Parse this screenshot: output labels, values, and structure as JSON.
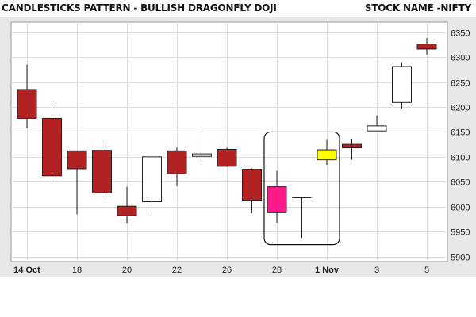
{
  "header": {
    "title": "CANDLESTICKS PATTERN - BULLISH DRAGONFLY DOJI",
    "stock": "STOCK NAME -NIFTY"
  },
  "colors": {
    "bearish": "#b22222",
    "bullish": "#ffffff",
    "highlight_pink": "#ff1a8c",
    "highlight_yellow": "#ffff00",
    "frame_bg": "#e8e8e8",
    "plot_bg": "#ffffff",
    "grid": "#dddddd"
  },
  "chart_data": {
    "type": "candlestick",
    "title": "CANDLESTICKS PATTERN - BULLISH DRAGONFLY DOJI",
    "xlabel": "",
    "ylabel": "",
    "ylim": [
      5890,
      6370
    ],
    "y_ticks": [
      5900,
      5950,
      6000,
      6050,
      6100,
      6150,
      6200,
      6250,
      6300,
      6350
    ],
    "x_ticks": [
      {
        "label": "14 Oct",
        "index": 0
      },
      {
        "label": "18",
        "index": 2
      },
      {
        "label": "20",
        "index": 4
      },
      {
        "label": "22",
        "index": 6
      },
      {
        "label": "26",
        "index": 8
      },
      {
        "label": "28",
        "index": 10
      },
      {
        "label": "1 Nov",
        "index": 12
      },
      {
        "label": "3",
        "index": 14
      },
      {
        "label": "5",
        "index": 16
      }
    ],
    "grid": true,
    "candles": [
      {
        "open": 6235,
        "high": 6285,
        "low": 6157,
        "close": 6177,
        "color": "bearish"
      },
      {
        "open": 6177,
        "high": 6203,
        "low": 6050,
        "close": 6062,
        "color": "bearish"
      },
      {
        "open": 6112,
        "high": 6112,
        "low": 5985,
        "close": 6076,
        "color": "bearish"
      },
      {
        "open": 6113,
        "high": 6128,
        "low": 6008,
        "close": 6028,
        "color": "bearish"
      },
      {
        "open": 6001,
        "high": 6040,
        "low": 5966,
        "close": 5982,
        "color": "bearish"
      },
      {
        "open": 6010,
        "high": 6100,
        "low": 5985,
        "close": 6100,
        "color": "bullish"
      },
      {
        "open": 6112,
        "high": 6118,
        "low": 6041,
        "close": 6066,
        "color": "bearish"
      },
      {
        "open": 6106,
        "high": 6152,
        "low": 6094,
        "close": 6101,
        "color": "bullish"
      },
      {
        "open": 6115,
        "high": 6118,
        "low": 6080,
        "close": 6081,
        "color": "bearish"
      },
      {
        "open": 6075,
        "high": 6077,
        "low": 5987,
        "close": 6013,
        "color": "bearish"
      },
      {
        "open": 6040,
        "high": 6072,
        "low": 5967,
        "close": 5988,
        "color": "highlight_pink"
      },
      {
        "open": 6018,
        "high": 6018,
        "low": 5937,
        "close": 6018,
        "color": "doji"
      },
      {
        "open": 6094,
        "high": 6134,
        "low": 6084,
        "close": 6114,
        "color": "highlight_yellow"
      },
      {
        "open": 6125,
        "high": 6135,
        "low": 6094,
        "close": 6118,
        "color": "bearish"
      },
      {
        "open": 6152,
        "high": 6183,
        "low": 6152,
        "close": 6162,
        "color": "bullish"
      },
      {
        "open": 6209,
        "high": 6290,
        "low": 6197,
        "close": 6281,
        "color": "bullish"
      },
      {
        "open": 6326,
        "high": 6338,
        "low": 6305,
        "close": 6316,
        "color": "bearish"
      }
    ],
    "highlight_box": {
      "from_index": 10,
      "to_index": 12,
      "y_low": 5924,
      "y_high": 6150
    }
  }
}
